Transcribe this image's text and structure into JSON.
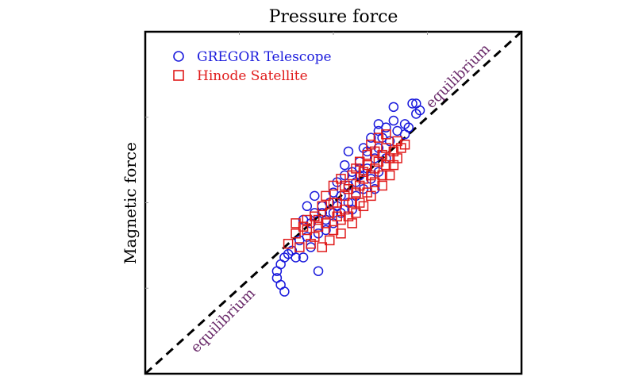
{
  "chart_data": {
    "type": "scatter",
    "title": "Pressure force",
    "xlabel": "",
    "ylabel": "Magnetic force",
    "xlim": [
      0,
      1
    ],
    "ylim": [
      0,
      1
    ],
    "grid": false,
    "legend_position": "top-left",
    "reference_line": {
      "label_upper": "equilibrium",
      "label_lower": "equilibrium",
      "color": "#000000"
    },
    "series": [
      {
        "name": "GREGOR Telescope",
        "marker": "circle",
        "color": "#1a1adc",
        "points": [
          [
            0.37,
            0.34
          ],
          [
            0.36,
            0.32
          ],
          [
            0.35,
            0.3
          ],
          [
            0.35,
            0.28
          ],
          [
            0.36,
            0.26
          ],
          [
            0.37,
            0.24
          ],
          [
            0.38,
            0.35
          ],
          [
            0.4,
            0.34
          ],
          [
            0.42,
            0.34
          ],
          [
            0.46,
            0.3
          ],
          [
            0.44,
            0.37
          ],
          [
            0.41,
            0.39
          ],
          [
            0.39,
            0.36
          ],
          [
            0.43,
            0.4
          ],
          [
            0.46,
            0.41
          ],
          [
            0.48,
            0.45
          ],
          [
            0.5,
            0.47
          ],
          [
            0.47,
            0.49
          ],
          [
            0.44,
            0.44
          ],
          [
            0.42,
            0.45
          ],
          [
            0.45,
            0.47
          ],
          [
            0.49,
            0.5
          ],
          [
            0.52,
            0.52
          ],
          [
            0.54,
            0.55
          ],
          [
            0.56,
            0.56
          ],
          [
            0.55,
            0.59
          ],
          [
            0.57,
            0.62
          ],
          [
            0.59,
            0.6
          ],
          [
            0.61,
            0.63
          ],
          [
            0.58,
            0.66
          ],
          [
            0.62,
            0.66
          ],
          [
            0.63,
            0.69
          ],
          [
            0.65,
            0.68
          ],
          [
            0.67,
            0.71
          ],
          [
            0.69,
            0.7
          ],
          [
            0.7,
            0.72
          ],
          [
            0.66,
            0.74
          ],
          [
            0.64,
            0.72
          ],
          [
            0.6,
            0.69
          ],
          [
            0.53,
            0.58
          ],
          [
            0.51,
            0.56
          ],
          [
            0.5,
            0.53
          ],
          [
            0.54,
            0.5
          ],
          [
            0.56,
            0.52
          ],
          [
            0.58,
            0.54
          ],
          [
            0.6,
            0.57
          ],
          [
            0.62,
            0.59
          ],
          [
            0.64,
            0.63
          ],
          [
            0.61,
            0.54
          ],
          [
            0.53,
            0.61
          ],
          [
            0.57,
            0.58
          ],
          [
            0.45,
            0.52
          ],
          [
            0.43,
            0.49
          ],
          [
            0.48,
            0.42
          ],
          [
            0.5,
            0.44
          ],
          [
            0.52,
            0.47
          ],
          [
            0.55,
            0.48
          ],
          [
            0.62,
            0.71
          ],
          [
            0.66,
            0.78
          ],
          [
            0.62,
            0.73
          ],
          [
            0.69,
            0.73
          ],
          [
            0.71,
            0.79
          ],
          [
            0.72,
            0.76
          ],
          [
            0.73,
            0.77
          ],
          [
            0.72,
            0.79
          ],
          [
            0.54,
            0.65
          ],
          [
            0.59,
            0.65
          ],
          [
            0.57,
            0.6
          ],
          [
            0.51,
            0.49
          ],
          [
            0.47,
            0.47
          ]
        ]
      },
      {
        "name": "Hinode Satellite",
        "marker": "square",
        "color": "#e01b1b",
        "points": [
          [
            0.38,
            0.38
          ],
          [
            0.4,
            0.41
          ],
          [
            0.43,
            0.42
          ],
          [
            0.45,
            0.4
          ],
          [
            0.46,
            0.43
          ],
          [
            0.48,
            0.44
          ],
          [
            0.5,
            0.42
          ],
          [
            0.52,
            0.45
          ],
          [
            0.49,
            0.47
          ],
          [
            0.51,
            0.5
          ],
          [
            0.53,
            0.52
          ],
          [
            0.55,
            0.5
          ],
          [
            0.54,
            0.54
          ],
          [
            0.56,
            0.53
          ],
          [
            0.57,
            0.55
          ],
          [
            0.58,
            0.57
          ],
          [
            0.6,
            0.58
          ],
          [
            0.59,
            0.61
          ],
          [
            0.61,
            0.6
          ],
          [
            0.62,
            0.62
          ],
          [
            0.63,
            0.64
          ],
          [
            0.64,
            0.66
          ],
          [
            0.65,
            0.63
          ],
          [
            0.66,
            0.65
          ],
          [
            0.67,
            0.68
          ],
          [
            0.68,
            0.66
          ],
          [
            0.63,
            0.58
          ],
          [
            0.61,
            0.56
          ],
          [
            0.59,
            0.53
          ],
          [
            0.57,
            0.5
          ],
          [
            0.56,
            0.47
          ],
          [
            0.54,
            0.46
          ],
          [
            0.52,
            0.41
          ],
          [
            0.49,
            0.39
          ],
          [
            0.47,
            0.37
          ],
          [
            0.44,
            0.38
          ],
          [
            0.41,
            0.37
          ],
          [
            0.45,
            0.46
          ],
          [
            0.47,
            0.49
          ],
          [
            0.48,
            0.52
          ],
          [
            0.5,
            0.55
          ],
          [
            0.52,
            0.57
          ],
          [
            0.55,
            0.58
          ],
          [
            0.57,
            0.62
          ],
          [
            0.59,
            0.64
          ],
          [
            0.6,
            0.67
          ],
          [
            0.62,
            0.69
          ],
          [
            0.64,
            0.7
          ],
          [
            0.66,
            0.61
          ],
          [
            0.65,
            0.58
          ],
          [
            0.63,
            0.55
          ],
          [
            0.6,
            0.52
          ],
          [
            0.58,
            0.49
          ],
          [
            0.55,
            0.44
          ],
          [
            0.53,
            0.48
          ],
          [
            0.51,
            0.46
          ],
          [
            0.46,
            0.45
          ],
          [
            0.43,
            0.45
          ],
          [
            0.42,
            0.43
          ],
          [
            0.4,
            0.44
          ],
          [
            0.56,
            0.6
          ],
          [
            0.58,
            0.59
          ],
          [
            0.61,
            0.65
          ],
          [
            0.64,
            0.61
          ],
          [
            0.67,
            0.63
          ],
          [
            0.69,
            0.67
          ],
          [
            0.5,
            0.5
          ],
          [
            0.53,
            0.55
          ]
        ]
      }
    ]
  }
}
